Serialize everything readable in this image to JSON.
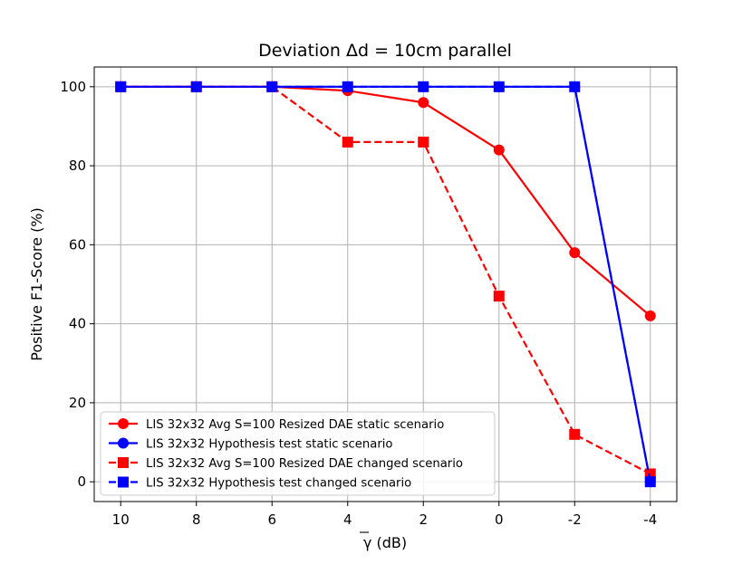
{
  "chart_data": {
    "type": "line",
    "title": "Deviation Δd = 10cm parallel",
    "xlabel": "γ (dB)",
    "ylabel": "Positive F1-Score (%)",
    "categories": [
      10,
      8,
      6,
      4,
      2,
      0,
      -2,
      -4
    ],
    "x_tick_labels": [
      "10",
      "8",
      "6",
      "4",
      "2",
      "0",
      "-2",
      "-4"
    ],
    "y_ticks": [
      0,
      20,
      40,
      60,
      80,
      100
    ],
    "ylim": [
      -5,
      105
    ],
    "grid": true,
    "legend_position": "lower-left",
    "series": [
      {
        "name": "LIS 32x32 Avg S=100 Resized DAE static scenario",
        "color": "#ff0000",
        "marker": "circle",
        "dash": "solid",
        "values": [
          100,
          100,
          100,
          99,
          96,
          84,
          58,
          42
        ]
      },
      {
        "name": "LIS 32x32 Hypothesis test static scenario",
        "color": "#0000ff",
        "marker": "circle",
        "dash": "solid",
        "values": [
          100,
          100,
          100,
          100,
          100,
          100,
          100,
          0
        ]
      },
      {
        "name": "LIS 32x32 Avg S=100 Resized DAE changed scenario",
        "color": "#ff0000",
        "marker": "square",
        "dash": "dashed",
        "values": [
          100,
          100,
          100,
          86,
          86,
          47,
          12,
          2
        ]
      },
      {
        "name": "LIS 32x32 Hypothesis test changed scenario",
        "color": "#0000ff",
        "marker": "square",
        "dash": "dashed",
        "values": [
          100,
          100,
          100,
          100,
          100,
          100,
          100,
          0
        ]
      }
    ]
  }
}
